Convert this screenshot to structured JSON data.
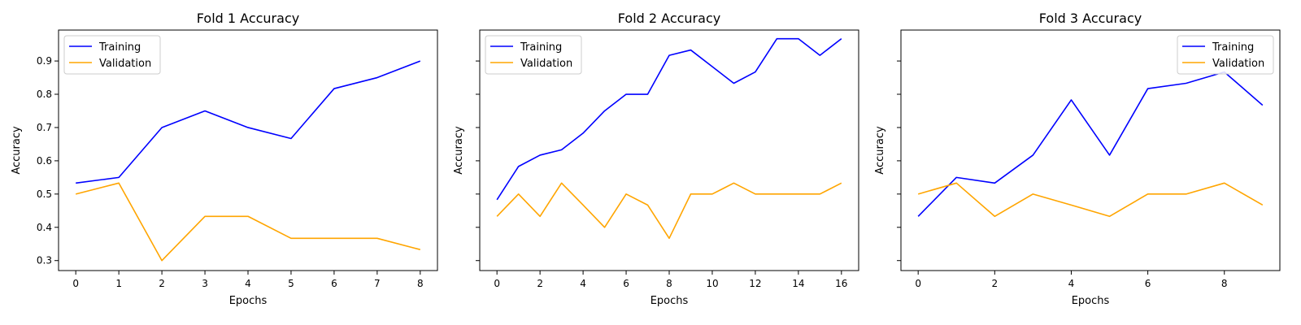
{
  "chart_data": [
    {
      "type": "line",
      "title": "Fold 1 Accuracy",
      "xlabel": "Epochs",
      "ylabel": "Accuracy",
      "x": [
        0,
        1,
        2,
        3,
        4,
        5,
        6,
        7,
        8
      ],
      "xlim": [
        -0.4,
        8.4
      ],
      "xticks": [
        0,
        1,
        2,
        3,
        4,
        5,
        6,
        7,
        8
      ],
      "ylim": [
        0.27,
        0.993
      ],
      "yticks": [
        0.3,
        0.4,
        0.5,
        0.6,
        0.7,
        0.8,
        0.9
      ],
      "ytick_labels_visible": true,
      "legend_position": "upper-left",
      "grid": false,
      "series": [
        {
          "name": "Training",
          "color": "#0000ff",
          "values": [
            0.533,
            0.55,
            0.7,
            0.75,
            0.7,
            0.667,
            0.817,
            0.85,
            0.9
          ]
        },
        {
          "name": "Validation",
          "color": "#ffa500",
          "values": [
            0.5,
            0.533,
            0.3,
            0.433,
            0.433,
            0.367,
            0.367,
            0.367,
            0.333
          ]
        }
      ]
    },
    {
      "type": "line",
      "title": "Fold 2 Accuracy",
      "xlabel": "Epochs",
      "ylabel": "Accuracy",
      "x": [
        0,
        1,
        2,
        3,
        4,
        5,
        6,
        7,
        8,
        9,
        10,
        11,
        12,
        13,
        14,
        15,
        16
      ],
      "xlim": [
        -0.8,
        16.8
      ],
      "xticks": [
        0,
        2,
        4,
        6,
        8,
        10,
        12,
        14,
        16
      ],
      "ylim": [
        0.27,
        0.993
      ],
      "yticks": [
        0.3,
        0.4,
        0.5,
        0.6,
        0.7,
        0.8,
        0.9
      ],
      "ytick_labels_visible": false,
      "legend_position": "upper-left",
      "grid": false,
      "series": [
        {
          "name": "Training",
          "color": "#0000ff",
          "values": [
            0.483,
            0.583,
            0.617,
            0.633,
            0.683,
            0.75,
            0.8,
            0.8,
            0.917,
            0.933,
            0.883,
            0.833,
            0.867,
            0.967,
            0.967,
            0.917,
            0.967
          ]
        },
        {
          "name": "Validation",
          "color": "#ffa500",
          "values": [
            0.433,
            0.5,
            0.433,
            0.533,
            0.467,
            0.4,
            0.5,
            0.467,
            0.367,
            0.5,
            0.5,
            0.533,
            0.5,
            0.5,
            0.5,
            0.5,
            0.533
          ]
        }
      ]
    },
    {
      "type": "line",
      "title": "Fold 3 Accuracy",
      "xlabel": "Epochs",
      "ylabel": "Accuracy",
      "x": [
        0,
        1,
        2,
        3,
        4,
        5,
        6,
        7,
        8,
        9
      ],
      "xlim": [
        -0.45,
        9.45
      ],
      "xticks": [
        0,
        2,
        4,
        6,
        8
      ],
      "ylim": [
        0.27,
        0.993
      ],
      "yticks": [
        0.3,
        0.4,
        0.5,
        0.6,
        0.7,
        0.8,
        0.9
      ],
      "ytick_labels_visible": false,
      "legend_position": "upper-right",
      "grid": false,
      "series": [
        {
          "name": "Training",
          "color": "#0000ff",
          "values": [
            0.433,
            0.55,
            0.533,
            0.617,
            0.783,
            0.617,
            0.817,
            0.833,
            0.867,
            0.767
          ]
        },
        {
          "name": "Validation",
          "color": "#ffa500",
          "values": [
            0.5,
            0.533,
            0.433,
            0.5,
            0.467,
            0.433,
            0.5,
            0.5,
            0.533,
            0.467
          ]
        }
      ]
    }
  ]
}
